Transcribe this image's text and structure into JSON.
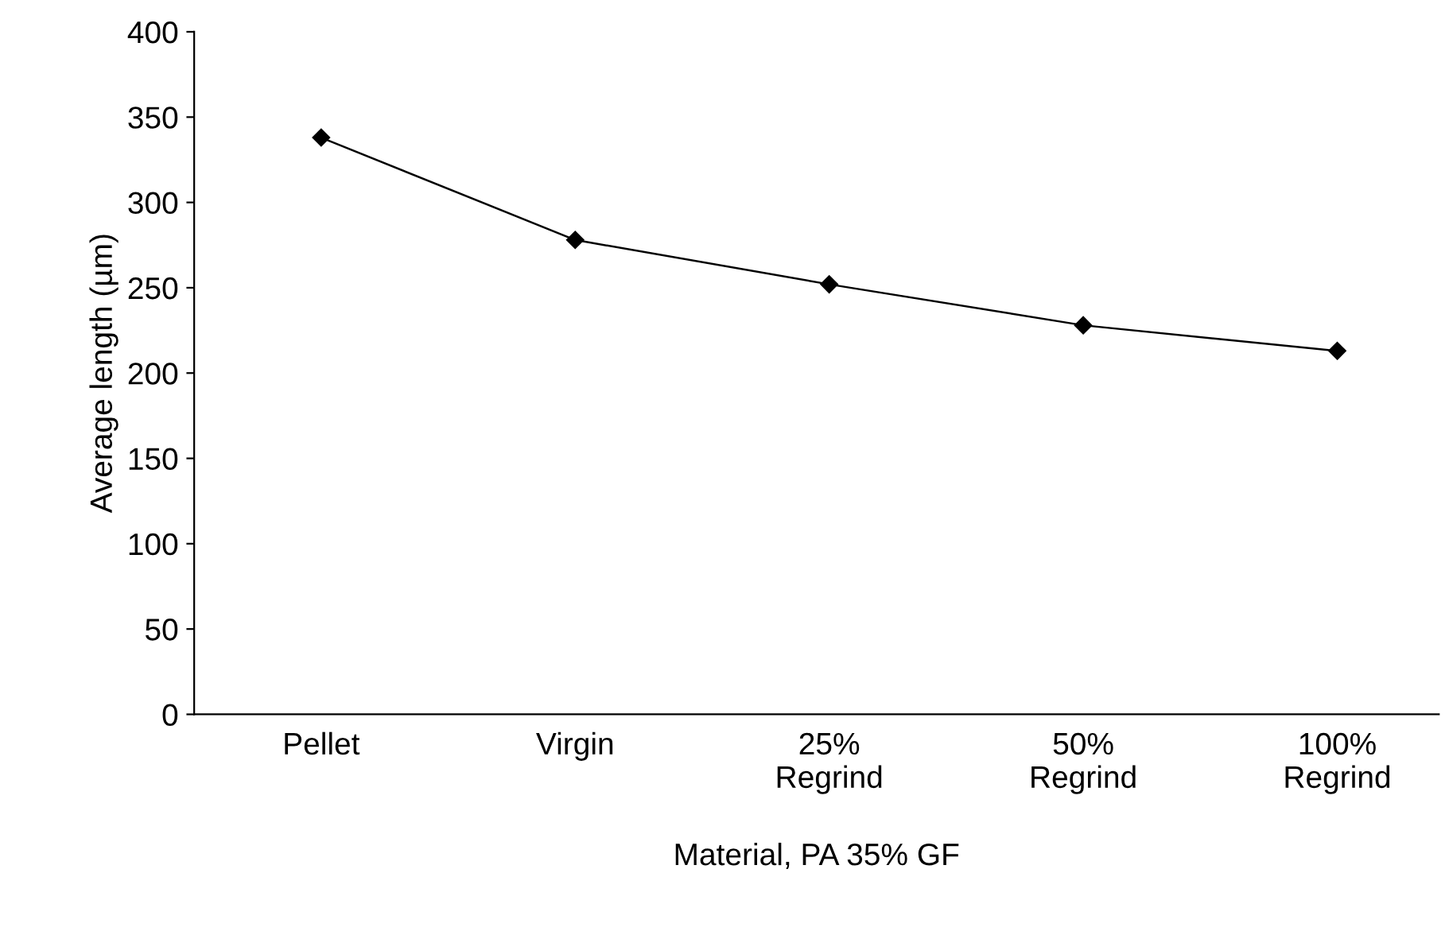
{
  "chart_data": {
    "type": "line",
    "xlabel": "Material, PA 35% GF",
    "ylabel": "Average length (µm)",
    "categories": [
      "Pellet",
      "Virgin",
      "25%\nRegrind",
      "50%\nRegrind",
      "100%\nRegrind"
    ],
    "values": [
      338,
      278,
      252,
      228,
      213
    ],
    "color": "#000000",
    "marker": "diamond",
    "line_style": "solid",
    "ylim": [
      0,
      400
    ],
    "yticks": [
      0,
      50,
      100,
      150,
      200,
      250,
      300,
      350,
      400
    ],
    "grid": false,
    "legend": false
  }
}
